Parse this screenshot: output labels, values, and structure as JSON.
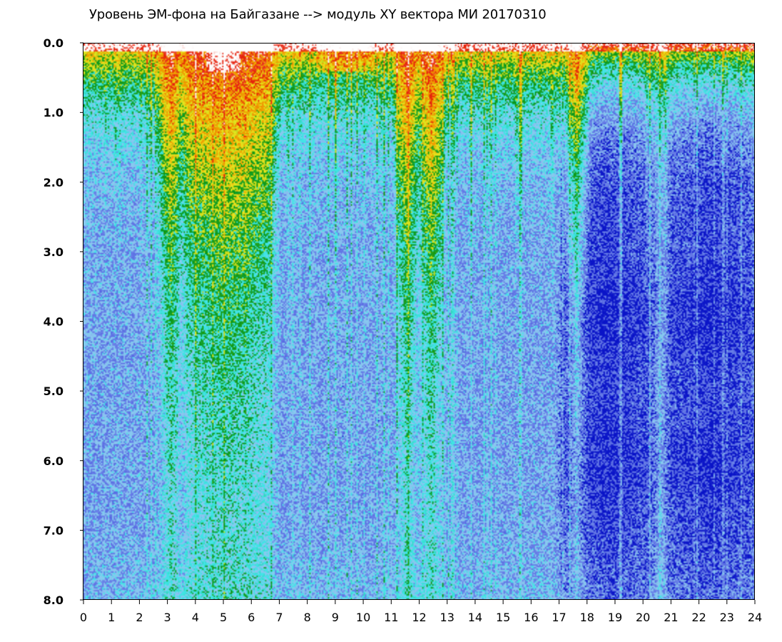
{
  "chart_data": {
    "type": "heatmap",
    "title": "Уровень ЭМ-фона на Байгазане  --> модуль XY вектора МИ  20170310",
    "xlabel": "",
    "ylabel": "",
    "xlim": [
      0,
      24
    ],
    "ylim": [
      0,
      8
    ],
    "y_inverted": true,
    "x_ticks": [
      "0",
      "1",
      "2",
      "3",
      "4",
      "5",
      "6",
      "7",
      "8",
      "9",
      "10",
      "11",
      "12",
      "13",
      "14",
      "15",
      "16",
      "17",
      "18",
      "19",
      "20",
      "21",
      "22",
      "23",
      "24"
    ],
    "y_ticks": [
      "0.0",
      "1.0",
      "2.0",
      "3.0",
      "4.0",
      "5.0",
      "6.0",
      "7.0",
      "8.0"
    ],
    "colorscale": [
      "#0a14c8",
      "#6478e6",
      "#8cc8f0",
      "#3ce6e6",
      "#0a9614",
      "#e6e61e",
      "#f0a000",
      "#e61e0a",
      "#ffffff"
    ],
    "colors": {
      "background": "#ffffff",
      "axis": "#000000"
    },
    "dense_bursts_hours": [
      [
        2.9,
        3.3
      ],
      [
        3.7,
        6.6
      ],
      [
        11.4,
        11.7
      ],
      [
        12.2,
        12.6
      ],
      [
        17.5,
        17.7
      ]
    ],
    "low_background_hours": [
      [
        17.2,
        20.2
      ],
      [
        21.0,
        23.8
      ]
    ],
    "saturation_hours": [
      [
        8.4,
        10.3
      ],
      [
        4.5,
        5.5
      ]
    ],
    "grid": false,
    "legend": "none"
  }
}
